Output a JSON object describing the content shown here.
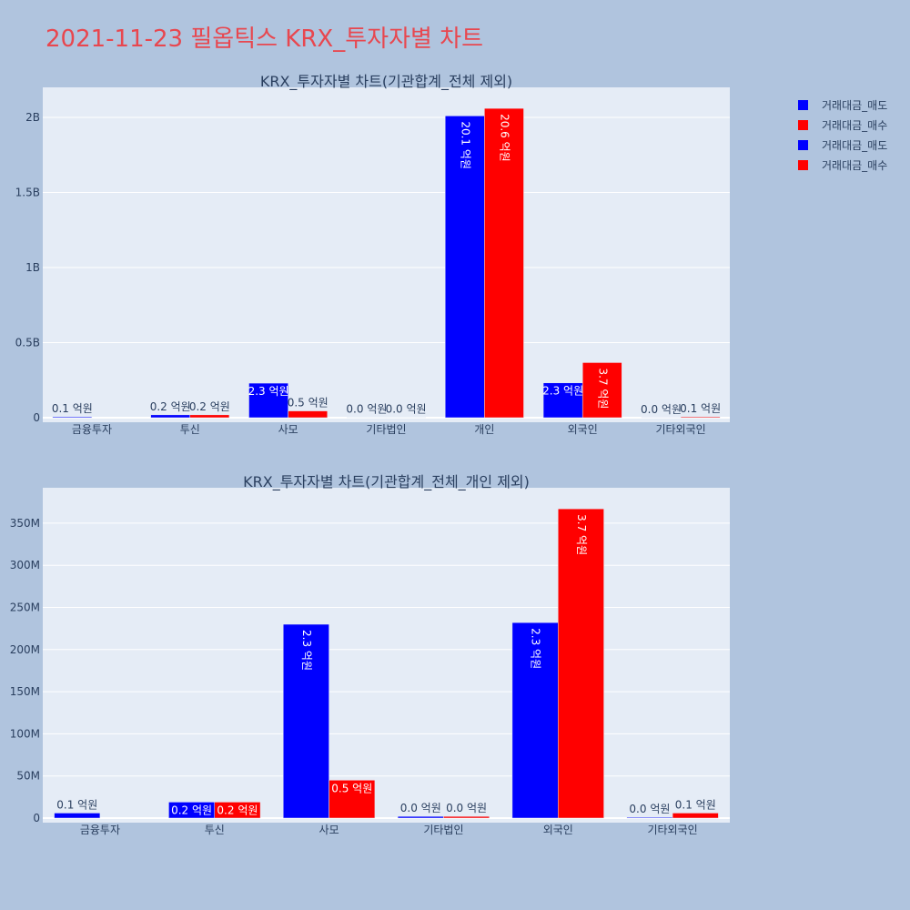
{
  "page": {
    "title": "2021-11-23 필옵틱스 KRX_투자자별 차트",
    "background": "#b0c4de",
    "title_color": "#e8474f",
    "plot_background": "#e5ecf6"
  },
  "legend": {
    "placement": "top-right",
    "items": [
      {
        "label": "거래대금_매도",
        "color": "#0000ff"
      },
      {
        "label": "거래대금_매수",
        "color": "#ff0000"
      },
      {
        "label": "거래대금_매도",
        "color": "#0000ff"
      },
      {
        "label": "거래대금_매수",
        "color": "#ff0000"
      }
    ]
  },
  "chart_data": [
    {
      "type": "bar",
      "title": "KRX_투자자별 차트(기관합계_전체 제외)",
      "categories": [
        "금융투자",
        "투신",
        "사모",
        "기타법인",
        "개인",
        "외국인",
        "기타외국인"
      ],
      "ylim": [
        0,
        2200000000
      ],
      "yticks": [
        0,
        500000000,
        1000000000,
        1500000000,
        2000000000
      ],
      "ytick_labels": [
        "0",
        "0.5B",
        "1B",
        "1.5B",
        "2B"
      ],
      "grid": true,
      "series": [
        {
          "name": "거래대금_매도",
          "color": "#0000ff",
          "values": [
            6000000,
            19000000,
            230000000,
            2000000,
            2010000000,
            232000000,
            1000000
          ],
          "labels": [
            "0.1 억원",
            "0.2 억원",
            "2.3 억원",
            "0.0 억원",
            "20.1 억원",
            "2.3 억원",
            "0.0 억원"
          ]
        },
        {
          "name": "거래대금_매수",
          "color": "#ff0000",
          "values": [
            0,
            19000000,
            45000000,
            2000000,
            2060000000,
            367000000,
            6000000
          ],
          "labels": [
            "",
            "0.2 억원",
            "0.5 억원",
            "0.0 억원",
            "20.6 억원",
            "3.7 억원",
            "0.1 억원"
          ]
        }
      ]
    },
    {
      "type": "bar",
      "title": "KRX_투자자별 차트(기관합계_전체_개인 제외)",
      "categories": [
        "금융투자",
        "투신",
        "사모",
        "기타법인",
        "외국인",
        "기타외국인"
      ],
      "ylim": [
        0,
        392000000
      ],
      "yticks": [
        0,
        50000000,
        100000000,
        150000000,
        200000000,
        250000000,
        300000000,
        350000000
      ],
      "ytick_labels": [
        "0",
        "50M",
        "100M",
        "150M",
        "200M",
        "250M",
        "300M",
        "350M"
      ],
      "grid": true,
      "series": [
        {
          "name": "거래대금_매도",
          "color": "#0000ff",
          "values": [
            6000000,
            19000000,
            230000000,
            2000000,
            232000000,
            1000000
          ],
          "labels": [
            "0.1 억원",
            "0.2 억원",
            "2.3 억원",
            "0.0 억원",
            "2.3 억원",
            "0.0 억원"
          ]
        },
        {
          "name": "거래대금_매수",
          "color": "#ff0000",
          "values": [
            0,
            19000000,
            45000000,
            2000000,
            367000000,
            6000000
          ],
          "labels": [
            "",
            "0.2 억원",
            "0.5 억원",
            "0.0 억원",
            "3.7 억원",
            "0.1 억원"
          ]
        }
      ]
    }
  ]
}
